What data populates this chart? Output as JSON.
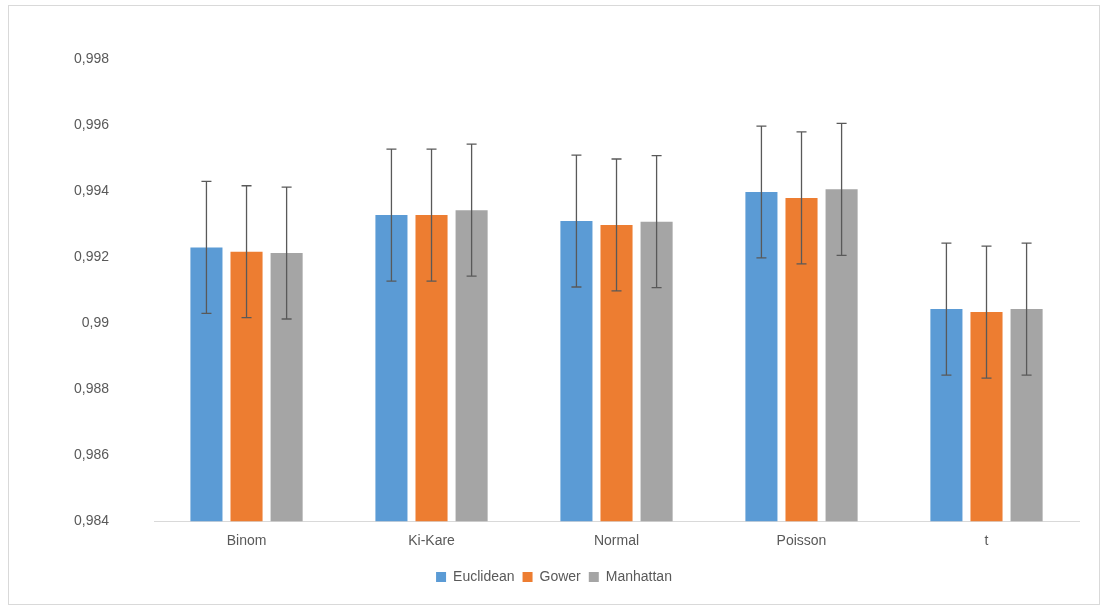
{
  "chart_data": {
    "type": "bar",
    "categories": [
      "Binom",
      "Ki-Kare",
      "Normal",
      "Poisson",
      "t"
    ],
    "series": [
      {
        "name": "Euclidean",
        "color": "#5b9bd5",
        "values": [
          0.9923,
          0.99328,
          0.9931,
          0.99398,
          0.99043
        ],
        "errors": [
          0.002,
          0.002,
          0.002,
          0.002,
          0.002
        ]
      },
      {
        "name": "Gower",
        "color": "#ed7d31",
        "values": [
          0.99217,
          0.99328,
          0.99298,
          0.9938,
          0.99034
        ],
        "errors": [
          0.002,
          0.002,
          0.002,
          0.002,
          0.002
        ]
      },
      {
        "name": "Manhattan",
        "color": "#a5a5a5",
        "values": [
          0.99213,
          0.99343,
          0.99308,
          0.99406,
          0.99043
        ],
        "errors": [
          0.002,
          0.002,
          0.002,
          0.002,
          0.002
        ]
      }
    ],
    "ylim": [
      0.984,
      0.998
    ],
    "yticks": [
      {
        "value": 0.984,
        "label": "0,984"
      },
      {
        "value": 0.986,
        "label": "0,986"
      },
      {
        "value": 0.988,
        "label": "0,988"
      },
      {
        "value": 0.99,
        "label": "0,99"
      },
      {
        "value": 0.992,
        "label": "0,992"
      },
      {
        "value": 0.994,
        "label": "0,994"
      },
      {
        "value": 0.996,
        "label": "0,996"
      },
      {
        "value": 0.998,
        "label": "0,998"
      }
    ],
    "grid": false,
    "legend": "bottom"
  }
}
